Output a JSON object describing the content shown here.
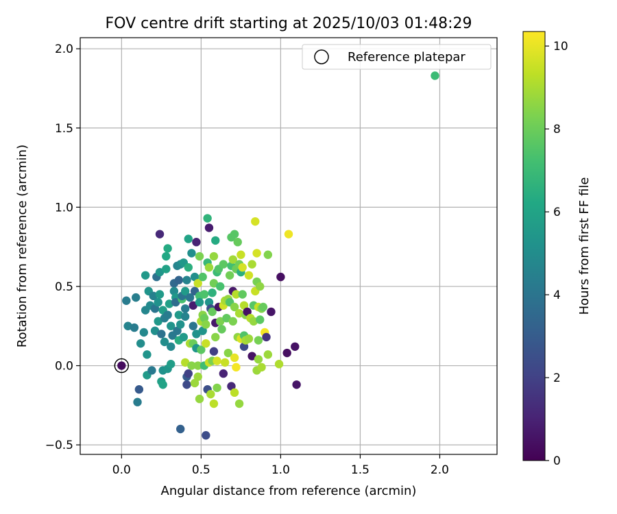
{
  "chart_data": {
    "type": "scatter",
    "title": "FOV centre drift starting at 2025/10/03 01:48:29",
    "xlabel": "Angular distance from reference (arcmin)",
    "ylabel": "Rotation from reference (arcmin)",
    "xlim": [
      -0.26,
      2.36
    ],
    "ylim": [
      -0.56,
      2.07
    ],
    "xticks": [
      0.0,
      0.5,
      1.0,
      1.5,
      2.0
    ],
    "xtick_labels": [
      "0.0",
      "0.5",
      "1.0",
      "1.5",
      "2.0"
    ],
    "yticks": [
      -0.5,
      0.0,
      0.5,
      1.0,
      1.5,
      2.0
    ],
    "ytick_labels": [
      "−0.5",
      "0.0",
      "0.5",
      "1.0",
      "1.5",
      "2.0"
    ],
    "grid": true,
    "legend": {
      "placement": "top-right",
      "entries": [
        "Reference platepar"
      ]
    },
    "reference_point": {
      "x": 0.0,
      "y": 0.0
    },
    "colorbar": {
      "label": "Hours from first FF file",
      "range": [
        0,
        10.35
      ],
      "ticks": [
        0,
        2,
        4,
        6,
        8,
        10
      ],
      "tick_labels": [
        "0",
        "2",
        "4",
        "6",
        "8",
        "10"
      ],
      "colormap": "viridis"
    },
    "series": [
      {
        "name": "FOV centre drift",
        "points": [
          [
            0.0,
            0.0,
            0.3
          ],
          [
            0.03,
            0.41,
            4.3
          ],
          [
            0.04,
            0.25,
            4.6
          ],
          [
            0.09,
            0.43,
            4.4
          ],
          [
            0.08,
            0.24,
            4.3
          ],
          [
            0.1,
            -0.23,
            4.3
          ],
          [
            0.11,
            -0.15,
            2.9
          ],
          [
            0.12,
            0.14,
            5.0
          ],
          [
            0.14,
            0.21,
            4.8
          ],
          [
            0.15,
            0.35,
            4.7
          ],
          [
            0.15,
            0.57,
            5.5
          ],
          [
            0.16,
            0.07,
            5.3
          ],
          [
            0.16,
            -0.06,
            5.6
          ],
          [
            0.17,
            0.47,
            5.3
          ],
          [
            0.18,
            0.38,
            4.9
          ],
          [
            0.19,
            -0.03,
            4.2
          ],
          [
            0.2,
            0.44,
            4.5
          ],
          [
            0.21,
            0.22,
            5.1
          ],
          [
            0.21,
            0.36,
            4.0
          ],
          [
            0.22,
            0.56,
            3.8
          ],
          [
            0.23,
            0.28,
            5.5
          ],
          [
            0.23,
            0.4,
            5.2
          ],
          [
            0.24,
            0.83,
            1.2
          ],
          [
            0.24,
            0.45,
            5.6
          ],
          [
            0.24,
            0.59,
            5.4
          ],
          [
            0.25,
            0.2,
            3.9
          ],
          [
            0.25,
            -0.1,
            5.8
          ],
          [
            0.26,
            -0.12,
            6.0
          ],
          [
            0.26,
            -0.03,
            5.2
          ],
          [
            0.26,
            0.35,
            5.7
          ],
          [
            0.27,
            0.3,
            4.4
          ],
          [
            0.27,
            0.15,
            5.0
          ],
          [
            0.28,
            0.61,
            5.9
          ],
          [
            0.28,
            0.69,
            6.2
          ],
          [
            0.29,
            0.74,
            6.3
          ],
          [
            0.29,
            0.32,
            4.3
          ],
          [
            0.29,
            -0.02,
            5.4
          ],
          [
            0.3,
            0.39,
            5.8
          ],
          [
            0.31,
            0.12,
            4.8
          ],
          [
            0.31,
            0.01,
            5.7
          ],
          [
            0.31,
            0.25,
            5.3
          ],
          [
            0.32,
            0.19,
            4.2
          ],
          [
            0.33,
            0.52,
            3.5
          ],
          [
            0.33,
            0.47,
            4.9
          ],
          [
            0.34,
            0.43,
            5.5
          ],
          [
            0.34,
            0.4,
            3.7
          ],
          [
            0.35,
            0.22,
            4.1
          ],
          [
            0.35,
            0.63,
            4.6
          ],
          [
            0.36,
            0.54,
            3.3
          ],
          [
            0.36,
            0.32,
            5.6
          ],
          [
            0.36,
            0.16,
            6.4
          ],
          [
            0.37,
            0.64,
            4.9
          ],
          [
            0.37,
            0.26,
            5.2
          ],
          [
            0.37,
            -0.4,
            3.2
          ],
          [
            0.38,
            0.42,
            7.3
          ],
          [
            0.38,
            0.44,
            4.0
          ],
          [
            0.39,
            0.18,
            5.6
          ],
          [
            0.39,
            0.65,
            5.5
          ],
          [
            0.4,
            0.36,
            4.3
          ],
          [
            0.4,
            0.02,
            9.2
          ],
          [
            0.4,
            0.47,
            5.6
          ],
          [
            0.4,
            0.31,
            4.6
          ],
          [
            0.41,
            0.54,
            4.6
          ],
          [
            0.41,
            -0.12,
            2.3
          ],
          [
            0.41,
            -0.07,
            3.0
          ],
          [
            0.42,
            0.8,
            6.0
          ],
          [
            0.42,
            0.62,
            6.5
          ],
          [
            0.42,
            -0.05,
            2.0
          ],
          [
            0.43,
            0.43,
            4.0
          ],
          [
            0.43,
            0.14,
            9.0
          ],
          [
            0.44,
            0.71,
            5.1
          ],
          [
            0.44,
            0.0,
            8.5
          ],
          [
            0.45,
            0.38,
            0.8
          ],
          [
            0.45,
            0.25,
            4.0
          ],
          [
            0.45,
            0.14,
            8.0
          ],
          [
            0.46,
            0.56,
            5.1
          ],
          [
            0.46,
            -0.11,
            8.8
          ],
          [
            0.46,
            0.47,
            3.3
          ],
          [
            0.47,
            0.2,
            5.2
          ],
          [
            0.47,
            0.11,
            5.4
          ],
          [
            0.47,
            0.78,
            1.0
          ],
          [
            0.48,
            0.52,
            9.5
          ],
          [
            0.48,
            0.0,
            8.5
          ],
          [
            0.48,
            -0.07,
            8.8
          ],
          [
            0.49,
            0.44,
            7.2
          ],
          [
            0.49,
            0.69,
            8.3
          ],
          [
            0.49,
            0.4,
            5.6
          ],
          [
            0.49,
            -0.21,
            8.7
          ],
          [
            0.5,
            0.28,
            9.0
          ],
          [
            0.5,
            0.1,
            7.7
          ],
          [
            0.51,
            0.56,
            7.5
          ],
          [
            0.51,
            0.22,
            5.3
          ],
          [
            0.51,
            0.32,
            8.5
          ],
          [
            0.52,
            0.45,
            7.4
          ],
          [
            0.52,
            0.3,
            8.0
          ],
          [
            0.52,
            0.0,
            7.1
          ],
          [
            0.53,
            0.14,
            9.5
          ],
          [
            0.53,
            -0.44,
            2.4
          ],
          [
            0.53,
            0.26,
            8.5
          ],
          [
            0.54,
            0.93,
            6.7
          ],
          [
            0.54,
            0.65,
            6.9
          ],
          [
            0.54,
            -0.15,
            2.5
          ],
          [
            0.55,
            0.87,
            0.8
          ],
          [
            0.55,
            0.62,
            8.8
          ],
          [
            0.55,
            0.4,
            5.3
          ],
          [
            0.55,
            0.02,
            9.5
          ],
          [
            0.56,
            -0.18,
            9.0
          ],
          [
            0.56,
            0.36,
            2.5
          ],
          [
            0.57,
            0.34,
            7.9
          ],
          [
            0.57,
            0.46,
            6.6
          ],
          [
            0.57,
            0.03,
            8.3
          ],
          [
            0.58,
            0.69,
            8.7
          ],
          [
            0.58,
            0.52,
            8.1
          ],
          [
            0.58,
            0.09,
            1.9
          ],
          [
            0.58,
            -0.24,
            9.3
          ],
          [
            0.59,
            0.18,
            8.5
          ],
          [
            0.59,
            0.79,
            6.3
          ],
          [
            0.59,
            0.27,
            0.7
          ],
          [
            0.6,
            0.59,
            7.0
          ],
          [
            0.6,
            0.03,
            9.7
          ],
          [
            0.6,
            -0.14,
            8.4
          ],
          [
            0.61,
            0.37,
            0.5
          ],
          [
            0.61,
            0.61,
            7.5
          ],
          [
            0.62,
            0.5,
            7.3
          ],
          [
            0.62,
            0.28,
            8.3
          ],
          [
            0.63,
            0.23,
            7.9
          ],
          [
            0.64,
            0.38,
            9.6
          ],
          [
            0.64,
            -0.05,
            1.0
          ],
          [
            0.64,
            0.64,
            7.7
          ],
          [
            0.65,
            0.41,
            9.0
          ],
          [
            0.65,
            0.02,
            9.5
          ],
          [
            0.66,
            0.3,
            7.8
          ],
          [
            0.67,
            0.08,
            8.5
          ],
          [
            0.67,
            0.42,
            8.7
          ],
          [
            0.68,
            0.57,
            8.1
          ],
          [
            0.68,
            0.4,
            7.5
          ],
          [
            0.69,
            -0.13,
            1.2
          ],
          [
            0.69,
            0.63,
            7.2
          ],
          [
            0.69,
            0.81,
            7.6
          ],
          [
            0.7,
            0.28,
            8.3
          ],
          [
            0.7,
            0.67,
            8.9
          ],
          [
            0.7,
            0.47,
            0.7
          ],
          [
            0.71,
            0.05,
            10.0
          ],
          [
            0.71,
            0.37,
            8.5
          ],
          [
            0.71,
            0.83,
            7.6
          ],
          [
            0.71,
            -0.17,
            9.3
          ],
          [
            0.72,
            0.45,
            9.2
          ],
          [
            0.72,
            0.61,
            8.0
          ],
          [
            0.72,
            -0.01,
            10.2
          ],
          [
            0.73,
            0.78,
            7.9
          ],
          [
            0.73,
            0.18,
            8.6
          ],
          [
            0.74,
            0.33,
            9.0
          ],
          [
            0.74,
            -0.24,
            8.7
          ],
          [
            0.74,
            0.64,
            8.1
          ],
          [
            0.75,
            0.7,
            9.5
          ],
          [
            0.75,
            0.59,
            6.5
          ],
          [
            0.75,
            0.17,
            9.8
          ],
          [
            0.76,
            0.45,
            7.8
          ],
          [
            0.76,
            0.62,
            9.7
          ],
          [
            0.77,
            0.19,
            7.5
          ],
          [
            0.77,
            0.38,
            9.2
          ],
          [
            0.77,
            0.12,
            2.3
          ],
          [
            0.78,
            0.16,
            9.0
          ],
          [
            0.78,
            0.32,
            8.5
          ],
          [
            0.79,
            0.34,
            0.5
          ],
          [
            0.8,
            0.57,
            9.6
          ],
          [
            0.8,
            0.17,
            8.8
          ],
          [
            0.81,
            0.3,
            9.2
          ],
          [
            0.82,
            0.64,
            9.0
          ],
          [
            0.82,
            0.06,
            0.5
          ],
          [
            0.83,
            0.28,
            8.7
          ],
          [
            0.83,
            0.38,
            7.6
          ],
          [
            0.84,
            0.91,
            9.7
          ],
          [
            0.84,
            0.47,
            9.5
          ],
          [
            0.85,
            0.71,
            9.7
          ],
          [
            0.85,
            -0.03,
            8.8
          ],
          [
            0.85,
            0.53,
            8.2
          ],
          [
            0.86,
            0.04,
            8.7
          ],
          [
            0.86,
            0.37,
            9.4
          ],
          [
            0.86,
            0.16,
            8.2
          ],
          [
            0.87,
            0.29,
            7.7
          ],
          [
            0.87,
            0.5,
            8.6
          ],
          [
            0.88,
            0.36,
            8.4
          ],
          [
            0.88,
            -0.01,
            9.0
          ],
          [
            0.89,
            0.37,
            7.9
          ],
          [
            0.9,
            0.21,
            10.2
          ],
          [
            0.91,
            0.18,
            1.5
          ],
          [
            0.92,
            0.7,
            8.4
          ],
          [
            0.92,
            0.07,
            8.8
          ],
          [
            0.94,
            0.34,
            0.6
          ],
          [
            0.99,
            0.01,
            9.1
          ],
          [
            1.0,
            0.56,
            0.4
          ],
          [
            1.05,
            0.83,
            10.1
          ],
          [
            1.04,
            0.08,
            0.4
          ],
          [
            1.09,
            0.12,
            0.5
          ],
          [
            1.1,
            -0.12,
            0.6
          ],
          [
            1.97,
            1.83,
            7.0
          ]
        ]
      }
    ]
  }
}
